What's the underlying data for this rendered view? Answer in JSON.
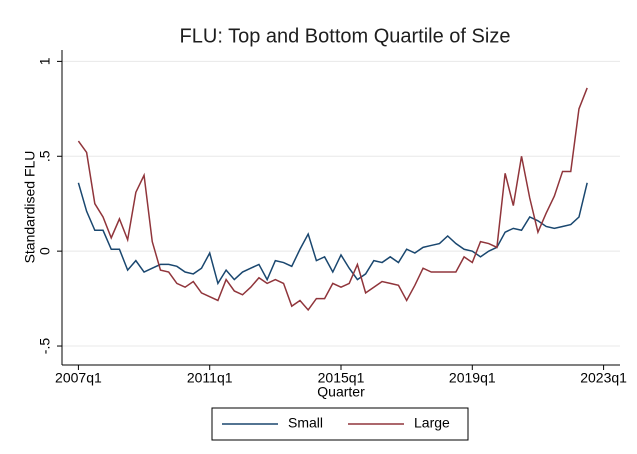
{
  "chart_data": {
    "type": "line",
    "title": "FLU: Top and Bottom Quartile of Size",
    "x_label": "Quarter",
    "y_label": "Standardised FLU",
    "x": [
      2007,
      2007.25,
      2007.5,
      2007.75,
      2008,
      2008.25,
      2008.5,
      2008.75,
      2009,
      2009.25,
      2009.5,
      2009.75,
      2010,
      2010.25,
      2010.5,
      2010.75,
      2011,
      2011.25,
      2011.5,
      2011.75,
      2012,
      2012.25,
      2012.5,
      2012.75,
      2013,
      2013.25,
      2013.5,
      2013.75,
      2014,
      2014.25,
      2014.5,
      2014.75,
      2015,
      2015.25,
      2015.5,
      2015.75,
      2016,
      2016.25,
      2016.5,
      2016.75,
      2017,
      2017.25,
      2017.5,
      2017.75,
      2018,
      2018.25,
      2018.5,
      2018.75,
      2019,
      2019.25,
      2019.5,
      2019.75,
      2020,
      2020.25,
      2020.5,
      2020.75,
      2021,
      2021.25,
      2021.5,
      2021.75,
      2022,
      2022.25,
      2022.5
    ],
    "series": [
      {
        "name": "Small",
        "color": "#1a476f",
        "values": [
          0.36,
          0.21,
          0.11,
          0.11,
          0.01,
          0.01,
          -0.1,
          -0.05,
          -0.11,
          -0.09,
          -0.07,
          -0.07,
          -0.08,
          -0.11,
          -0.12,
          -0.09,
          -0.01,
          -0.17,
          -0.1,
          -0.15,
          -0.11,
          -0.09,
          -0.07,
          -0.15,
          -0.05,
          -0.06,
          -0.08,
          0.01,
          0.09,
          -0.05,
          -0.03,
          -0.11,
          -0.02,
          -0.09,
          -0.15,
          -0.12,
          -0.05,
          -0.06,
          -0.03,
          -0.06,
          0.01,
          -0.01,
          0.02,
          0.03,
          0.04,
          0.08,
          0.04,
          0.01,
          0.0,
          -0.03,
          0.0,
          0.02,
          0.1,
          0.12,
          0.11,
          0.18,
          0.16,
          0.13,
          0.12,
          0.13,
          0.14,
          0.18,
          0.36
        ]
      },
      {
        "name": "Large",
        "color": "#90353b",
        "values": [
          0.58,
          0.52,
          0.25,
          0.18,
          0.07,
          0.17,
          0.06,
          0.31,
          0.4,
          0.05,
          -0.1,
          -0.11,
          -0.17,
          -0.19,
          -0.16,
          -0.22,
          -0.24,
          -0.26,
          -0.15,
          -0.21,
          -0.23,
          -0.19,
          -0.14,
          -0.17,
          -0.15,
          -0.17,
          -0.29,
          -0.26,
          -0.31,
          -0.25,
          -0.25,
          -0.17,
          -0.19,
          -0.17,
          -0.07,
          -0.22,
          -0.19,
          -0.16,
          -0.17,
          -0.18,
          -0.26,
          -0.18,
          -0.09,
          -0.11,
          -0.11,
          -0.11,
          -0.11,
          -0.03,
          -0.06,
          0.05,
          0.04,
          0.02,
          0.41,
          0.24,
          0.5,
          0.28,
          0.1,
          0.2,
          0.29,
          0.42,
          0.42,
          0.75,
          0.86
        ]
      }
    ],
    "xlim": [
      2006.5,
      2023.5
    ],
    "xticks": [
      {
        "value": 2007,
        "label": "2007q1"
      },
      {
        "value": 2011,
        "label": "2011q1"
      },
      {
        "value": 2015,
        "label": "2015q1"
      },
      {
        "value": 2019,
        "label": "2019q1"
      },
      {
        "value": 2023,
        "label": "2023q1"
      }
    ],
    "ylim": [
      -0.6,
      1.06
    ],
    "yticks": [
      {
        "value": -0.5,
        "label": "-.5"
      },
      0,
      {
        "value": 0.5,
        "label": ".5"
      },
      1
    ],
    "grid": true,
    "legend": "bottom"
  }
}
